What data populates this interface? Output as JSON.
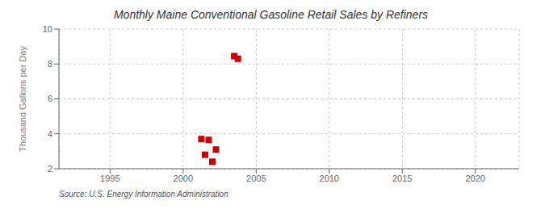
{
  "chart_data": {
    "type": "scatter",
    "title": "Monthly Maine Conventional Gasoline Retail Sales by Refiners",
    "ylabel": "Thousand Gallons per Day",
    "annotations": [
      "Source: U.S. Energy Information Administration"
    ],
    "x": [
      2001.25,
      2001.75,
      2001.5,
      2002.0,
      2002.25,
      2003.5,
      2003.75
    ],
    "values": [
      3.7,
      3.65,
      2.8,
      2.4,
      3.1,
      8.45,
      8.3
    ],
    "color": "#cc0000",
    "marker": "square",
    "xlim": [
      1991.5,
      2023
    ],
    "ylim": [
      2,
      10
    ],
    "xticks": [
      1995,
      2000,
      2005,
      2010,
      2015,
      2020
    ],
    "yticks": [
      2,
      4,
      6,
      8,
      10
    ],
    "grid": true
  }
}
